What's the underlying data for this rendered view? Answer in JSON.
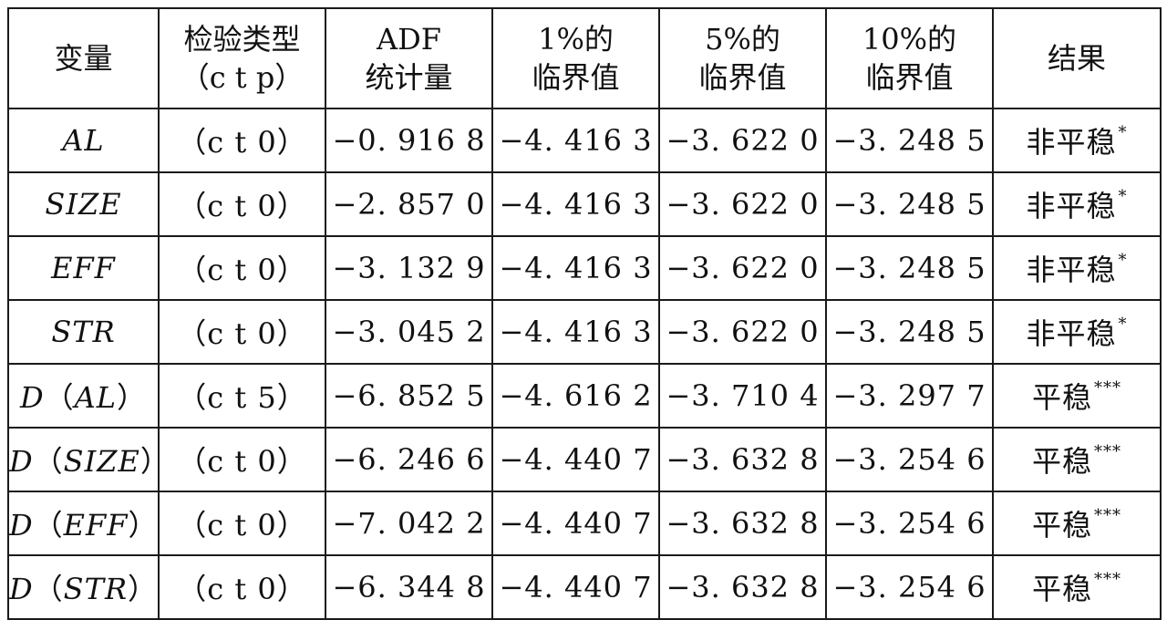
{
  "table": {
    "headers": [
      [
        "变量"
      ],
      [
        "检验类型",
        "（c t p）"
      ],
      [
        "ADF",
        "统计量"
      ],
      [
        "1%的",
        "临界值"
      ],
      [
        "5%的",
        "临界值"
      ],
      [
        "10%的",
        "临界值"
      ],
      [
        "结果"
      ]
    ],
    "rows": [
      {
        "variable": "AL",
        "diff": "",
        "type": "（c t 0）",
        "adf": "−0. 916 8",
        "cv1": "−4. 416 3",
        "cv5": "−3. 622 0",
        "cv10": "−3. 248 5",
        "result": "非平稳",
        "stars": "*"
      },
      {
        "variable": "SIZE",
        "diff": "",
        "type": "（c t 0）",
        "adf": "−2. 857 0",
        "cv1": "−4. 416 3",
        "cv5": "−3. 622 0",
        "cv10": "−3. 248 5",
        "result": "非平稳",
        "stars": "*"
      },
      {
        "variable": "EFF",
        "diff": "",
        "type": "（c t 0）",
        "adf": "−3. 132 9",
        "cv1": "−4. 416 3",
        "cv5": "−3. 622 0",
        "cv10": "−3. 248 5",
        "result": "非平稳",
        "stars": "*"
      },
      {
        "variable": "STR",
        "diff": "",
        "type": "（c t 0）",
        "adf": "−3. 045 2",
        "cv1": "−4. 416 3",
        "cv5": "−3. 622 0",
        "cv10": "−3. 248 5",
        "result": "非平稳",
        "stars": "*"
      },
      {
        "variable": "AL",
        "diff": "D",
        "type": "（c t 5）",
        "adf": "−6. 852 5",
        "cv1": "−4. 616 2",
        "cv5": "−3. 710 4",
        "cv10": "−3. 297 7",
        "result": "平稳",
        "stars": "***"
      },
      {
        "variable": "SIZE",
        "diff": "D",
        "type": "（c t 0）",
        "adf": "−6. 246 6",
        "cv1": "−4. 440 7",
        "cv5": "−3. 632 8",
        "cv10": "−3. 254 6",
        "result": "平稳",
        "stars": "***"
      },
      {
        "variable": "EFF",
        "diff": "D",
        "type": "（c t 0）",
        "adf": "−7. 042 2",
        "cv1": "−4. 440 7",
        "cv5": "−3. 632 8",
        "cv10": "−3. 254 6",
        "result": "平稳",
        "stars": "***"
      },
      {
        "variable": "STR",
        "diff": "D",
        "type": "（c t 0）",
        "adf": "−6. 344 8",
        "cv1": "−4. 440 7",
        "cv5": "−3. 632 8",
        "cv10": "−3. 254 6",
        "result": "平稳",
        "stars": "***"
      }
    ]
  },
  "chart_data": {
    "type": "table",
    "columns": [
      "变量",
      "检验类型（c t p）",
      "ADF统计量",
      "1%的临界值",
      "5%的临界值",
      "10%的临界值",
      "结果"
    ],
    "rows": [
      [
        "AL",
        "（c t 0）",
        -0.9168,
        -4.4163,
        -3.622,
        -3.2485,
        "非平稳*"
      ],
      [
        "SIZE",
        "（c t 0）",
        -2.857,
        -4.4163,
        -3.622,
        -3.2485,
        "非平稳*"
      ],
      [
        "EFF",
        "（c t 0）",
        -3.1329,
        -4.4163,
        -3.622,
        -3.2485,
        "非平稳*"
      ],
      [
        "STR",
        "（c t 0）",
        -3.0452,
        -4.4163,
        -3.622,
        -3.2485,
        "非平稳*"
      ],
      [
        "D（AL）",
        "（c t 5）",
        -6.8525,
        -4.6162,
        -3.7104,
        -3.2977,
        "平稳***"
      ],
      [
        "D（SIZE）",
        "（c t 0）",
        -6.2466,
        -4.4407,
        -3.6328,
        -3.2546,
        "平稳***"
      ],
      [
        "D（EFF）",
        "（c t 0）",
        -7.0422,
        -4.4407,
        -3.6328,
        -3.2546,
        "平稳***"
      ],
      [
        "D（STR）",
        "（c t 0）",
        -6.3448,
        -4.4407,
        -3.6328,
        -3.2546,
        "平稳***"
      ]
    ]
  }
}
